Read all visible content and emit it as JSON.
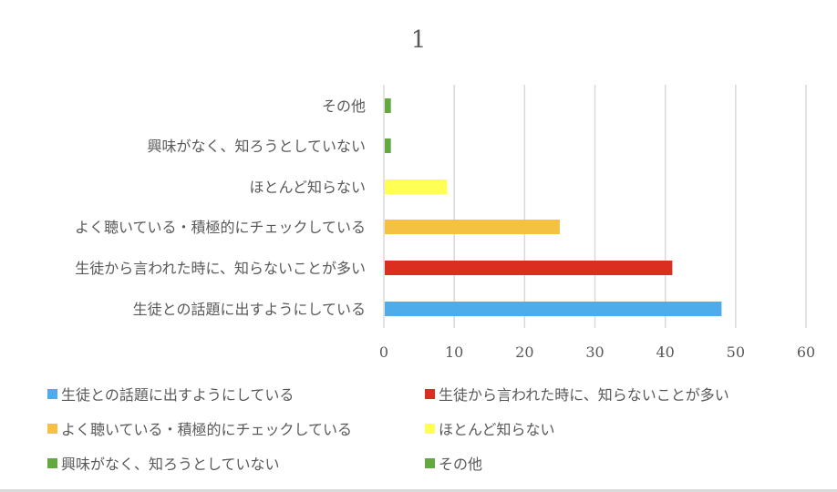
{
  "chart_data": {
    "type": "bar",
    "orientation": "horizontal",
    "title": "1",
    "categories": [
      "その他",
      "興味がなく、知ろうとしていない",
      "ほとんど知らない",
      "よく聴いている・積極的にチェックしている",
      "生徒から言われた時に、知らないことが多い",
      "生徒との話題に出すようにしている"
    ],
    "values": [
      1,
      1,
      9,
      25,
      41,
      48
    ],
    "colors": [
      "#65a83f",
      "#65a83f",
      "#ffff54",
      "#f4c142",
      "#dc2e20",
      "#4eaceb"
    ],
    "xlim": [
      0,
      60
    ],
    "xticks": [
      "0",
      "10",
      "20",
      "30",
      "40",
      "50",
      "60"
    ],
    "grid": true,
    "legend_position": "bottom",
    "legend": [
      {
        "label": "生徒との話題に出すようにしている",
        "color": "#4eaceb"
      },
      {
        "label": "生徒から言われた時に、知らないことが多い",
        "color": "#dc2e20"
      },
      {
        "label": "よく聴いている・積極的にチェックしている",
        "color": "#f4c142"
      },
      {
        "label": "ほとんど知らない",
        "color": "#ffff54"
      },
      {
        "label": "興味がなく、知ろうとしていない",
        "color": "#65a83f"
      },
      {
        "label": "その他",
        "color": "#65a83f"
      }
    ]
  }
}
